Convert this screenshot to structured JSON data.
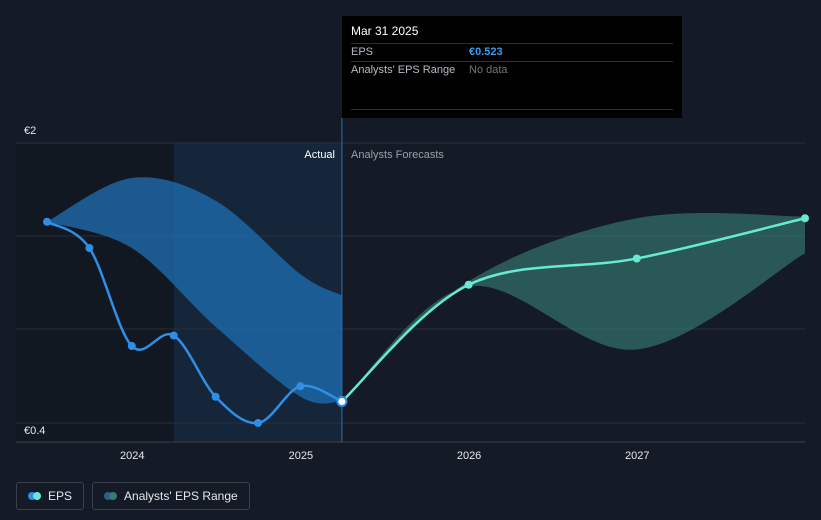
{
  "tooltip": {
    "date": "Mar 31 2025",
    "eps_label": "EPS",
    "eps_value": "€0.523",
    "range_label": "Analysts' EPS Range",
    "range_value": "No data"
  },
  "labels": {
    "actual": "Actual",
    "forecast": "Analysts Forecasts"
  },
  "legend": {
    "eps": "EPS",
    "range": "Analysts' EPS Range"
  },
  "colors": {
    "background": "#151b26",
    "eps_actual": "#2f8ee6",
    "eps_forecast": "#66ead4",
    "range_actual": "#1f6fb4",
    "range_forecast": "#3d8a7e"
  },
  "chart_data": {
    "type": "line",
    "y_ticks": [
      "€0.4",
      "€2"
    ],
    "ylim": [
      0.4,
      2.0
    ],
    "x_ticks": [
      "2024",
      "2025",
      "2026",
      "2027"
    ],
    "xlim": [
      "2023-06-30",
      "2027-12-31"
    ],
    "divider": "2025-03-31",
    "grid": true,
    "series": [
      {
        "name": "EPS",
        "segment": "actual",
        "points": [
          [
            "2023-06-30",
            1.55
          ],
          [
            "2023-09-30",
            1.4
          ],
          [
            "2023-12-31",
            0.84
          ],
          [
            "2024-03-31",
            0.9
          ],
          [
            "2024-06-30",
            0.55
          ],
          [
            "2024-09-30",
            0.4
          ],
          [
            "2024-12-31",
            0.61
          ],
          [
            "2025-03-31",
            0.523
          ]
        ]
      },
      {
        "name": "EPS",
        "segment": "forecast",
        "points": [
          [
            "2025-03-31",
            0.523
          ],
          [
            "2025-12-31",
            1.19
          ],
          [
            "2026-12-31",
            1.34
          ],
          [
            "2027-12-31",
            1.57
          ]
        ]
      }
    ],
    "ranges": [
      {
        "name": "Analysts' EPS Range",
        "segment": "actual",
        "upper": [
          [
            "2023-06-30",
            1.55
          ],
          [
            "2023-12-31",
            1.8
          ],
          [
            "2024-06-30",
            1.67
          ],
          [
            "2024-12-31",
            1.25
          ],
          [
            "2025-03-31",
            1.13
          ]
        ],
        "lower": [
          [
            "2023-06-30",
            1.55
          ],
          [
            "2023-12-31",
            1.4
          ],
          [
            "2024-06-30",
            0.95
          ],
          [
            "2024-12-31",
            0.55
          ],
          [
            "2025-03-31",
            0.523
          ]
        ]
      },
      {
        "name": "Analysts' EPS Range",
        "segment": "forecast",
        "upper": [
          [
            "2025-03-31",
            0.523
          ],
          [
            "2025-12-31",
            1.21
          ],
          [
            "2026-12-31",
            1.57
          ],
          [
            "2027-12-31",
            1.58
          ]
        ],
        "lower": [
          [
            "2025-03-31",
            0.523
          ],
          [
            "2025-12-31",
            1.18
          ],
          [
            "2026-12-31",
            0.82
          ],
          [
            "2027-12-31",
            1.37
          ]
        ]
      }
    ]
  }
}
